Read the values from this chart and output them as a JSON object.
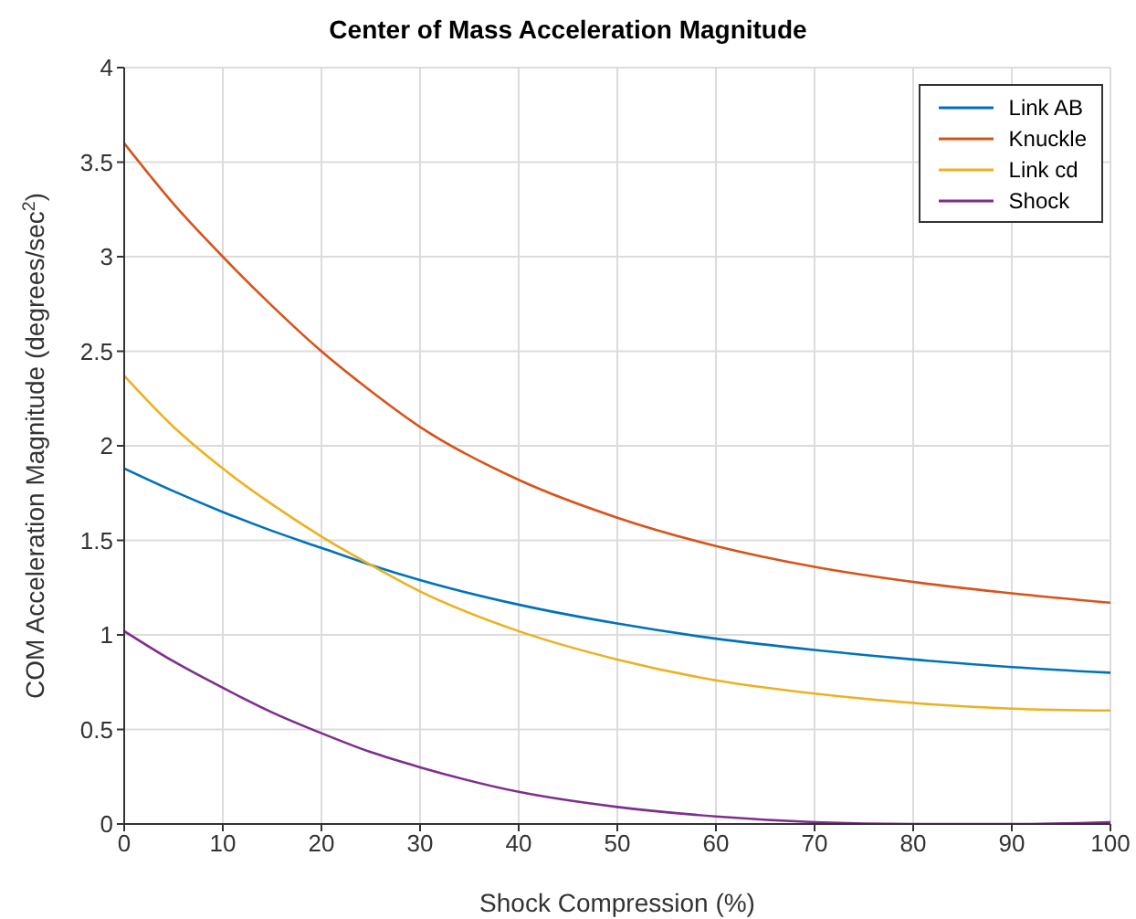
{
  "chart_data": {
    "type": "line",
    "title": "Center of Mass Acceleration Magnitude",
    "xlabel": "Shock Compression (%)",
    "ylabel": "COM Acceleration Magnitude (degrees/sec$^{2}$)",
    "x": [
      0,
      5,
      10,
      15,
      20,
      25,
      30,
      40,
      50,
      60,
      70,
      80,
      90,
      100
    ],
    "series": [
      {
        "name": "Link AB",
        "color": "#0072bd",
        "values": [
          1.88,
          1.76,
          1.65,
          1.55,
          1.46,
          1.37,
          1.29,
          1.16,
          1.06,
          0.98,
          0.92,
          0.87,
          0.83,
          0.8
        ]
      },
      {
        "name": "Knuckle",
        "color": "#d95319",
        "values": [
          3.6,
          3.28,
          3.0,
          2.74,
          2.5,
          2.29,
          2.1,
          1.82,
          1.62,
          1.47,
          1.36,
          1.28,
          1.22,
          1.17
        ]
      },
      {
        "name": "Link cd",
        "color": "#edb120",
        "values": [
          2.37,
          2.1,
          1.88,
          1.69,
          1.52,
          1.37,
          1.23,
          1.02,
          0.87,
          0.76,
          0.69,
          0.64,
          0.61,
          0.6
        ]
      },
      {
        "name": "Shock",
        "color": "#7e2f8e",
        "values": [
          1.02,
          0.86,
          0.72,
          0.59,
          0.48,
          0.38,
          0.3,
          0.17,
          0.09,
          0.04,
          0.01,
          0.0,
          0.0,
          0.01
        ]
      }
    ],
    "xlim": [
      0,
      100
    ],
    "xticks": [
      0,
      10,
      20,
      30,
      40,
      50,
      60,
      70,
      80,
      90,
      100
    ],
    "ylim": [
      0,
      4
    ],
    "yticks": [
      0,
      0.5,
      1,
      1.5,
      2,
      2.5,
      3,
      3.5,
      4
    ],
    "grid": true,
    "legend": "top right",
    "marker": "none",
    "line_style": "solid"
  }
}
